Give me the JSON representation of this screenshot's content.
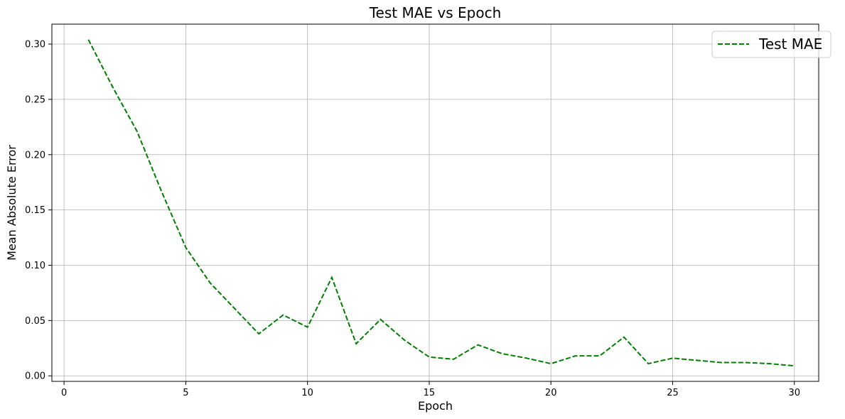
{
  "chart_data": {
    "type": "line",
    "title": "Test MAE vs Epoch",
    "xlabel": "Epoch",
    "ylabel": "Mean Absolute Error",
    "xlim": [
      -0.5,
      31.0
    ],
    "ylim": [
      -0.005,
      0.318
    ],
    "xticks": [
      0,
      5,
      10,
      15,
      20,
      25,
      30
    ],
    "yticks": [
      0.0,
      0.05,
      0.1,
      0.15,
      0.2,
      0.25,
      0.3
    ],
    "ytick_labels": [
      "0.00",
      "0.05",
      "0.10",
      "0.15",
      "0.20",
      "0.25",
      "0.30"
    ],
    "grid": true,
    "legend": "top-right",
    "series": [
      {
        "name": "Test MAE",
        "color": "#008000",
        "linestyle": "dashed",
        "x": [
          1,
          2,
          3,
          4,
          5,
          6,
          7,
          8,
          9,
          10,
          11,
          12,
          13,
          14,
          15,
          16,
          17,
          18,
          19,
          20,
          21,
          22,
          23,
          24,
          25,
          26,
          27,
          28,
          29,
          30
        ],
        "y": [
          0.304,
          0.261,
          0.221,
          0.167,
          0.116,
          0.084,
          0.061,
          0.038,
          0.055,
          0.044,
          0.089,
          0.029,
          0.051,
          0.032,
          0.017,
          0.015,
          0.028,
          0.02,
          0.016,
          0.011,
          0.018,
          0.018,
          0.035,
          0.011,
          0.016,
          0.014,
          0.012,
          0.012,
          0.011,
          0.009
        ]
      }
    ]
  }
}
